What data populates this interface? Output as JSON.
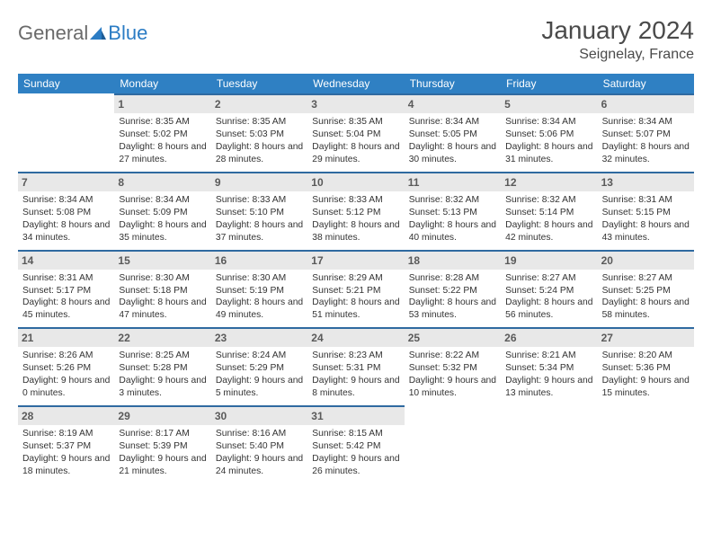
{
  "brand": {
    "part1": "General",
    "part2": "Blue"
  },
  "title": "January 2024",
  "location": "Seignelay, France",
  "colors": {
    "header_bg": "#2f80c3",
    "header_text": "#ffffff",
    "daynum_bg": "#e8e8e8",
    "border": "#2f6aa0",
    "brand_gray": "#6a6a6a",
    "brand_blue": "#2b7cc4"
  },
  "day_headers": [
    "Sunday",
    "Monday",
    "Tuesday",
    "Wednesday",
    "Thursday",
    "Friday",
    "Saturday"
  ],
  "weeks": [
    [
      null,
      {
        "n": "1",
        "sr": "8:35 AM",
        "ss": "5:02 PM",
        "dl": "8 hours and 27 minutes."
      },
      {
        "n": "2",
        "sr": "8:35 AM",
        "ss": "5:03 PM",
        "dl": "8 hours and 28 minutes."
      },
      {
        "n": "3",
        "sr": "8:35 AM",
        "ss": "5:04 PM",
        "dl": "8 hours and 29 minutes."
      },
      {
        "n": "4",
        "sr": "8:34 AM",
        "ss": "5:05 PM",
        "dl": "8 hours and 30 minutes."
      },
      {
        "n": "5",
        "sr": "8:34 AM",
        "ss": "5:06 PM",
        "dl": "8 hours and 31 minutes."
      },
      {
        "n": "6",
        "sr": "8:34 AM",
        "ss": "5:07 PM",
        "dl": "8 hours and 32 minutes."
      }
    ],
    [
      {
        "n": "7",
        "sr": "8:34 AM",
        "ss": "5:08 PM",
        "dl": "8 hours and 34 minutes."
      },
      {
        "n": "8",
        "sr": "8:34 AM",
        "ss": "5:09 PM",
        "dl": "8 hours and 35 minutes."
      },
      {
        "n": "9",
        "sr": "8:33 AM",
        "ss": "5:10 PM",
        "dl": "8 hours and 37 minutes."
      },
      {
        "n": "10",
        "sr": "8:33 AM",
        "ss": "5:12 PM",
        "dl": "8 hours and 38 minutes."
      },
      {
        "n": "11",
        "sr": "8:32 AM",
        "ss": "5:13 PM",
        "dl": "8 hours and 40 minutes."
      },
      {
        "n": "12",
        "sr": "8:32 AM",
        "ss": "5:14 PM",
        "dl": "8 hours and 42 minutes."
      },
      {
        "n": "13",
        "sr": "8:31 AM",
        "ss": "5:15 PM",
        "dl": "8 hours and 43 minutes."
      }
    ],
    [
      {
        "n": "14",
        "sr": "8:31 AM",
        "ss": "5:17 PM",
        "dl": "8 hours and 45 minutes."
      },
      {
        "n": "15",
        "sr": "8:30 AM",
        "ss": "5:18 PM",
        "dl": "8 hours and 47 minutes."
      },
      {
        "n": "16",
        "sr": "8:30 AM",
        "ss": "5:19 PM",
        "dl": "8 hours and 49 minutes."
      },
      {
        "n": "17",
        "sr": "8:29 AM",
        "ss": "5:21 PM",
        "dl": "8 hours and 51 minutes."
      },
      {
        "n": "18",
        "sr": "8:28 AM",
        "ss": "5:22 PM",
        "dl": "8 hours and 53 minutes."
      },
      {
        "n": "19",
        "sr": "8:27 AM",
        "ss": "5:24 PM",
        "dl": "8 hours and 56 minutes."
      },
      {
        "n": "20",
        "sr": "8:27 AM",
        "ss": "5:25 PM",
        "dl": "8 hours and 58 minutes."
      }
    ],
    [
      {
        "n": "21",
        "sr": "8:26 AM",
        "ss": "5:26 PM",
        "dl": "9 hours and 0 minutes."
      },
      {
        "n": "22",
        "sr": "8:25 AM",
        "ss": "5:28 PM",
        "dl": "9 hours and 3 minutes."
      },
      {
        "n": "23",
        "sr": "8:24 AM",
        "ss": "5:29 PM",
        "dl": "9 hours and 5 minutes."
      },
      {
        "n": "24",
        "sr": "8:23 AM",
        "ss": "5:31 PM",
        "dl": "9 hours and 8 minutes."
      },
      {
        "n": "25",
        "sr": "8:22 AM",
        "ss": "5:32 PM",
        "dl": "9 hours and 10 minutes."
      },
      {
        "n": "26",
        "sr": "8:21 AM",
        "ss": "5:34 PM",
        "dl": "9 hours and 13 minutes."
      },
      {
        "n": "27",
        "sr": "8:20 AM",
        "ss": "5:36 PM",
        "dl": "9 hours and 15 minutes."
      }
    ],
    [
      {
        "n": "28",
        "sr": "8:19 AM",
        "ss": "5:37 PM",
        "dl": "9 hours and 18 minutes."
      },
      {
        "n": "29",
        "sr": "8:17 AM",
        "ss": "5:39 PM",
        "dl": "9 hours and 21 minutes."
      },
      {
        "n": "30",
        "sr": "8:16 AM",
        "ss": "5:40 PM",
        "dl": "9 hours and 24 minutes."
      },
      {
        "n": "31",
        "sr": "8:15 AM",
        "ss": "5:42 PM",
        "dl": "9 hours and 26 minutes."
      },
      null,
      null,
      null
    ]
  ],
  "labels": {
    "sunrise": "Sunrise: ",
    "sunset": "Sunset: ",
    "daylight": "Daylight: "
  }
}
